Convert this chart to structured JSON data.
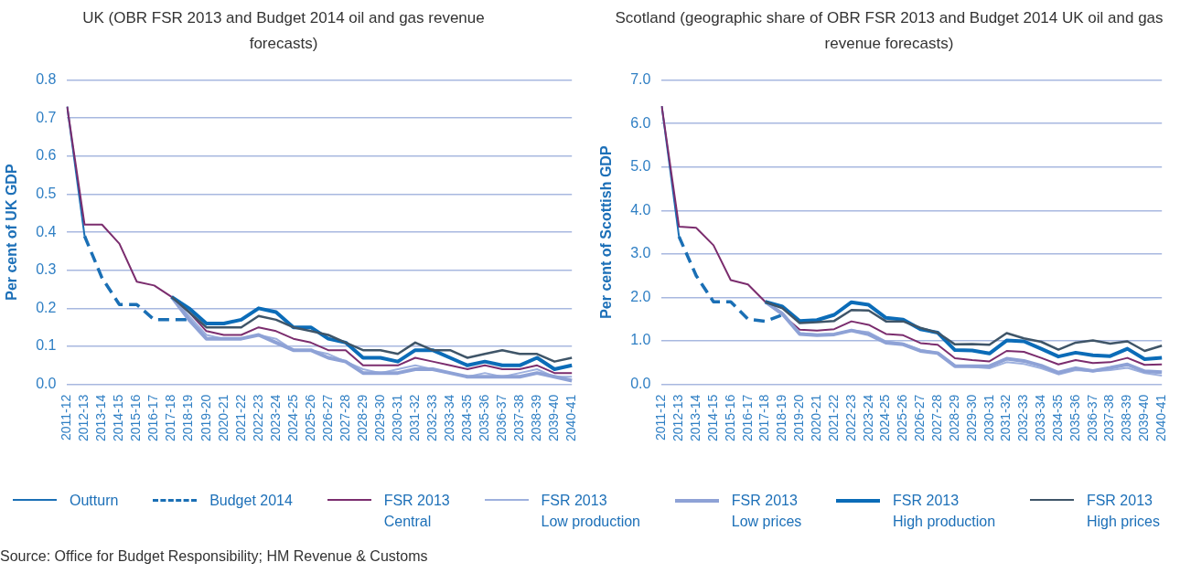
{
  "chart_data": [
    {
      "type": "line",
      "title": "UK (OBR FSR 2013 and Budget 2014 oil and gas revenue forecasts)",
      "ylabel": "Per cent of UK GDP",
      "categories": [
        "2011-12",
        "2012-13",
        "2013-14",
        "2014-15",
        "2015-16",
        "2016-17",
        "2017-18",
        "2018-19",
        "2019-20",
        "2020-21",
        "2021-22",
        "2022-23",
        "2023-24",
        "2024-25",
        "2025-26",
        "2026-27",
        "2027-28",
        "2028-29",
        "2029-30",
        "2030-31",
        "2031-32",
        "2032-33",
        "2033-34",
        "2034-35",
        "2035-36",
        "2036-37",
        "2037-38",
        "2038-39",
        "2039-40",
        "2040-41"
      ],
      "ylim": [
        0,
        0.8
      ],
      "yticks": [
        {
          "value": 0,
          "label": "0.0"
        },
        0.1,
        0.2,
        0.3,
        0.4,
        0.5,
        0.6,
        0.7,
        0.8
      ],
      "grid": "y",
      "legend": "bottom",
      "annotations": [
        "Source: Office for Budget Responsibility; HM Revenue & Customs"
      ],
      "series": [
        {
          "name": "Outturn",
          "color": "#1a6fb5",
          "values": [
            0.73,
            0.39,
            null,
            null,
            null,
            null,
            null,
            null,
            null,
            null,
            null,
            null,
            null,
            null,
            null,
            null,
            null,
            null,
            null,
            null,
            null,
            null,
            null,
            null,
            null,
            null,
            null,
            null,
            null,
            null
          ]
        },
        {
          "name": "Budget 2014",
          "color": "#1a6fb5",
          "line_style": "dashed",
          "values": [
            null,
            0.39,
            0.28,
            0.21,
            0.21,
            0.17,
            0.17,
            0.17,
            null,
            null,
            null,
            null,
            null,
            null,
            null,
            null,
            null,
            null,
            null,
            null,
            null,
            null,
            null,
            null,
            null,
            null,
            null,
            null,
            null,
            null
          ]
        },
        {
          "name": "FSR 2013\nCentral",
          "color": "#7b2d6e",
          "values": [
            0.73,
            0.42,
            0.42,
            0.37,
            0.27,
            0.26,
            0.23,
            0.19,
            0.14,
            0.13,
            0.13,
            0.15,
            0.14,
            0.12,
            0.11,
            0.09,
            0.09,
            0.05,
            0.05,
            0.05,
            0.07,
            0.06,
            0.05,
            0.04,
            0.05,
            0.04,
            0.04,
            0.05,
            0.03,
            0.03
          ]
        },
        {
          "name": "FSR 2013\nLow production",
          "color": "#9db0de",
          "values": [
            null,
            null,
            null,
            null,
            null,
            null,
            0.23,
            0.18,
            0.13,
            0.12,
            0.12,
            0.13,
            0.12,
            0.09,
            0.09,
            0.08,
            0.06,
            0.04,
            0.03,
            0.04,
            0.05,
            0.04,
            0.03,
            0.02,
            0.03,
            0.02,
            0.03,
            0.04,
            0.02,
            0.02
          ]
        },
        {
          "name": "FSR 2013\nLow prices",
          "color": "#8ea2d6",
          "values": [
            null,
            null,
            null,
            null,
            null,
            null,
            0.23,
            0.17,
            0.12,
            0.12,
            0.12,
            0.13,
            0.11,
            0.09,
            0.09,
            0.07,
            0.06,
            0.03,
            0.03,
            0.03,
            0.04,
            0.04,
            0.03,
            0.02,
            0.02,
            0.02,
            0.02,
            0.03,
            0.02,
            0.01
          ]
        },
        {
          "name": "FSR 2013\nHigh production",
          "color": "#0b6cb8",
          "values": [
            null,
            null,
            null,
            null,
            null,
            null,
            0.23,
            0.2,
            0.16,
            0.16,
            0.17,
            0.2,
            0.19,
            0.15,
            0.15,
            0.12,
            0.11,
            0.07,
            0.07,
            0.06,
            0.09,
            0.09,
            0.07,
            0.05,
            0.06,
            0.05,
            0.05,
            0.07,
            0.04,
            0.05
          ]
        },
        {
          "name": "FSR 2013\nHigh prices",
          "color": "#3f5568",
          "values": [
            null,
            null,
            null,
            null,
            null,
            null,
            0.23,
            0.19,
            0.15,
            0.15,
            0.15,
            0.18,
            0.17,
            0.15,
            0.14,
            0.13,
            0.11,
            0.09,
            0.09,
            0.08,
            0.11,
            0.09,
            0.09,
            0.07,
            0.08,
            0.09,
            0.08,
            0.08,
            0.06,
            0.07
          ]
        }
      ]
    },
    {
      "type": "line",
      "title": "Scotland (geographic share of OBR FSR 2013 and Budget 2014 UK oil and gas revenue forecasts)",
      "ylabel": "Per cent of Scottish GDP",
      "categories": [
        "2011-12",
        "2012-13",
        "2013-14",
        "2014-15",
        "2015-16",
        "2016-17",
        "2017-18",
        "2018-19",
        "2019-20",
        "2020-21",
        "2021-22",
        "2022-23",
        "2023-24",
        "2024-25",
        "2025-26",
        "2026-27",
        "2027-28",
        "2028-29",
        "2029-30",
        "2030-31",
        "2031-32",
        "2032-33",
        "2033-34",
        "2034-35",
        "2035-36",
        "2036-37",
        "2037-38",
        "2038-39",
        "2039-40",
        "2040-41"
      ],
      "ylim": [
        0,
        7
      ],
      "yticks": [
        {
          "value": 0,
          "label": "0.0"
        },
        {
          "value": 1,
          "label": "1.0"
        },
        {
          "value": 2,
          "label": "2.0"
        },
        {
          "value": 3,
          "label": "3.0"
        },
        {
          "value": 4,
          "label": "4.0"
        },
        {
          "value": 5,
          "label": "5.0"
        },
        {
          "value": 6,
          "label": "6.0"
        },
        {
          "value": 7,
          "label": "7.0"
        }
      ],
      "grid": "y",
      "series": [
        {
          "color": "#1a6fb5",
          "values": [
            6.4,
            3.4,
            null,
            null,
            null,
            null,
            null,
            null,
            null,
            null,
            null,
            null,
            null,
            null,
            null,
            null,
            null,
            null,
            null,
            null,
            null,
            null,
            null,
            null,
            null,
            null,
            null,
            null,
            null,
            null
          ]
        },
        {
          "color": "#1a6fb5",
          "line_style": "dashed",
          "values": [
            null,
            3.4,
            2.5,
            1.9,
            1.9,
            1.5,
            1.45,
            1.6,
            null,
            null,
            null,
            null,
            null,
            null,
            null,
            null,
            null,
            null,
            null,
            null,
            null,
            null,
            null,
            null,
            null,
            null,
            null,
            null,
            null,
            null
          ]
        },
        {
          "color": "#7b2d6e",
          "values": [
            6.4,
            3.63,
            3.6,
            3.2,
            2.4,
            2.3,
            1.9,
            1.6,
            1.26,
            1.24,
            1.27,
            1.45,
            1.37,
            1.16,
            1.13,
            0.95,
            0.91,
            0.6,
            0.56,
            0.53,
            0.77,
            0.75,
            0.61,
            0.46,
            0.56,
            0.49,
            0.51,
            0.61,
            0.45,
            0.46
          ]
        },
        {
          "color": "#9db0de",
          "values": [
            null,
            null,
            null,
            null,
            null,
            null,
            1.9,
            1.65,
            1.18,
            1.15,
            1.16,
            1.25,
            1.2,
            0.99,
            0.94,
            0.79,
            0.73,
            0.44,
            0.4,
            0.37,
            0.51,
            0.47,
            0.37,
            0.23,
            0.33,
            0.3,
            0.33,
            0.38,
            0.26,
            0.2
          ]
        },
        {
          "color": "#8ea2d6",
          "values": [
            null,
            null,
            null,
            null,
            null,
            null,
            1.9,
            1.62,
            1.16,
            1.13,
            1.15,
            1.24,
            1.15,
            0.96,
            0.92,
            0.77,
            0.72,
            0.42,
            0.42,
            0.42,
            0.59,
            0.54,
            0.43,
            0.27,
            0.37,
            0.31,
            0.38,
            0.46,
            0.3,
            0.28
          ]
        },
        {
          "color": "#0b6cb8",
          "values": [
            null,
            null,
            null,
            null,
            null,
            null,
            1.9,
            1.79,
            1.46,
            1.48,
            1.6,
            1.89,
            1.83,
            1.53,
            1.49,
            1.27,
            1.19,
            0.79,
            0.78,
            0.71,
            1.01,
            0.99,
            0.82,
            0.64,
            0.73,
            0.67,
            0.65,
            0.82,
            0.58,
            0.61
          ]
        },
        {
          "color": "#3f5568",
          "values": [
            null,
            null,
            null,
            null,
            null,
            null,
            1.9,
            1.75,
            1.41,
            1.43,
            1.46,
            1.71,
            1.7,
            1.45,
            1.45,
            1.3,
            1.19,
            0.92,
            0.93,
            0.91,
            1.18,
            1.06,
            0.98,
            0.8,
            0.96,
            1.01,
            0.94,
            0.99,
            0.77,
            0.89
          ]
        }
      ]
    }
  ]
}
